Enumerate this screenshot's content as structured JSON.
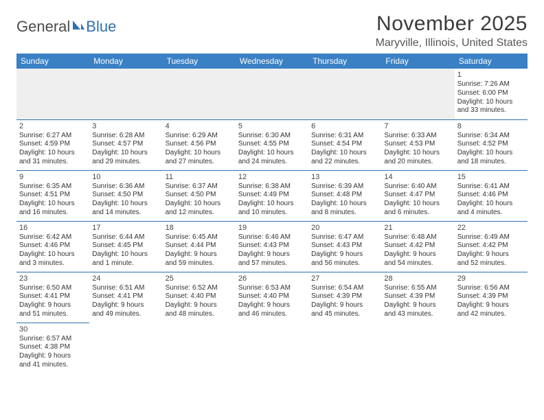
{
  "logo": {
    "text_general": "General",
    "text_blue": "Blue"
  },
  "title": "November 2025",
  "location": "Maryville, Illinois, United States",
  "colors": {
    "header_bg": "#3a80c4",
    "rule": "#2f6fb0",
    "text": "#333333",
    "muted_bg": "#efefef"
  },
  "weekdays": [
    "Sunday",
    "Monday",
    "Tuesday",
    "Wednesday",
    "Thursday",
    "Friday",
    "Saturday"
  ],
  "weeks": [
    [
      null,
      null,
      null,
      null,
      null,
      null,
      {
        "n": "1",
        "sr": "Sunrise: 7:26 AM",
        "ss": "Sunset: 6:00 PM",
        "d1": "Daylight: 10 hours",
        "d2": "and 33 minutes."
      }
    ],
    [
      {
        "n": "2",
        "sr": "Sunrise: 6:27 AM",
        "ss": "Sunset: 4:59 PM",
        "d1": "Daylight: 10 hours",
        "d2": "and 31 minutes."
      },
      {
        "n": "3",
        "sr": "Sunrise: 6:28 AM",
        "ss": "Sunset: 4:57 PM",
        "d1": "Daylight: 10 hours",
        "d2": "and 29 minutes."
      },
      {
        "n": "4",
        "sr": "Sunrise: 6:29 AM",
        "ss": "Sunset: 4:56 PM",
        "d1": "Daylight: 10 hours",
        "d2": "and 27 minutes."
      },
      {
        "n": "5",
        "sr": "Sunrise: 6:30 AM",
        "ss": "Sunset: 4:55 PM",
        "d1": "Daylight: 10 hours",
        "d2": "and 24 minutes."
      },
      {
        "n": "6",
        "sr": "Sunrise: 6:31 AM",
        "ss": "Sunset: 4:54 PM",
        "d1": "Daylight: 10 hours",
        "d2": "and 22 minutes."
      },
      {
        "n": "7",
        "sr": "Sunrise: 6:33 AM",
        "ss": "Sunset: 4:53 PM",
        "d1": "Daylight: 10 hours",
        "d2": "and 20 minutes."
      },
      {
        "n": "8",
        "sr": "Sunrise: 6:34 AM",
        "ss": "Sunset: 4:52 PM",
        "d1": "Daylight: 10 hours",
        "d2": "and 18 minutes."
      }
    ],
    [
      {
        "n": "9",
        "sr": "Sunrise: 6:35 AM",
        "ss": "Sunset: 4:51 PM",
        "d1": "Daylight: 10 hours",
        "d2": "and 16 minutes."
      },
      {
        "n": "10",
        "sr": "Sunrise: 6:36 AM",
        "ss": "Sunset: 4:50 PM",
        "d1": "Daylight: 10 hours",
        "d2": "and 14 minutes."
      },
      {
        "n": "11",
        "sr": "Sunrise: 6:37 AM",
        "ss": "Sunset: 4:50 PM",
        "d1": "Daylight: 10 hours",
        "d2": "and 12 minutes."
      },
      {
        "n": "12",
        "sr": "Sunrise: 6:38 AM",
        "ss": "Sunset: 4:49 PM",
        "d1": "Daylight: 10 hours",
        "d2": "and 10 minutes."
      },
      {
        "n": "13",
        "sr": "Sunrise: 6:39 AM",
        "ss": "Sunset: 4:48 PM",
        "d1": "Daylight: 10 hours",
        "d2": "and 8 minutes."
      },
      {
        "n": "14",
        "sr": "Sunrise: 6:40 AM",
        "ss": "Sunset: 4:47 PM",
        "d1": "Daylight: 10 hours",
        "d2": "and 6 minutes."
      },
      {
        "n": "15",
        "sr": "Sunrise: 6:41 AM",
        "ss": "Sunset: 4:46 PM",
        "d1": "Daylight: 10 hours",
        "d2": "and 4 minutes."
      }
    ],
    [
      {
        "n": "16",
        "sr": "Sunrise: 6:42 AM",
        "ss": "Sunset: 4:46 PM",
        "d1": "Daylight: 10 hours",
        "d2": "and 3 minutes."
      },
      {
        "n": "17",
        "sr": "Sunrise: 6:44 AM",
        "ss": "Sunset: 4:45 PM",
        "d1": "Daylight: 10 hours",
        "d2": "and 1 minute."
      },
      {
        "n": "18",
        "sr": "Sunrise: 6:45 AM",
        "ss": "Sunset: 4:44 PM",
        "d1": "Daylight: 9 hours",
        "d2": "and 59 minutes."
      },
      {
        "n": "19",
        "sr": "Sunrise: 6:46 AM",
        "ss": "Sunset: 4:43 PM",
        "d1": "Daylight: 9 hours",
        "d2": "and 57 minutes."
      },
      {
        "n": "20",
        "sr": "Sunrise: 6:47 AM",
        "ss": "Sunset: 4:43 PM",
        "d1": "Daylight: 9 hours",
        "d2": "and 56 minutes."
      },
      {
        "n": "21",
        "sr": "Sunrise: 6:48 AM",
        "ss": "Sunset: 4:42 PM",
        "d1": "Daylight: 9 hours",
        "d2": "and 54 minutes."
      },
      {
        "n": "22",
        "sr": "Sunrise: 6:49 AM",
        "ss": "Sunset: 4:42 PM",
        "d1": "Daylight: 9 hours",
        "d2": "and 52 minutes."
      }
    ],
    [
      {
        "n": "23",
        "sr": "Sunrise: 6:50 AM",
        "ss": "Sunset: 4:41 PM",
        "d1": "Daylight: 9 hours",
        "d2": "and 51 minutes."
      },
      {
        "n": "24",
        "sr": "Sunrise: 6:51 AM",
        "ss": "Sunset: 4:41 PM",
        "d1": "Daylight: 9 hours",
        "d2": "and 49 minutes."
      },
      {
        "n": "25",
        "sr": "Sunrise: 6:52 AM",
        "ss": "Sunset: 4:40 PM",
        "d1": "Daylight: 9 hours",
        "d2": "and 48 minutes."
      },
      {
        "n": "26",
        "sr": "Sunrise: 6:53 AM",
        "ss": "Sunset: 4:40 PM",
        "d1": "Daylight: 9 hours",
        "d2": "and 46 minutes."
      },
      {
        "n": "27",
        "sr": "Sunrise: 6:54 AM",
        "ss": "Sunset: 4:39 PM",
        "d1": "Daylight: 9 hours",
        "d2": "and 45 minutes."
      },
      {
        "n": "28",
        "sr": "Sunrise: 6:55 AM",
        "ss": "Sunset: 4:39 PM",
        "d1": "Daylight: 9 hours",
        "d2": "and 43 minutes."
      },
      {
        "n": "29",
        "sr": "Sunrise: 6:56 AM",
        "ss": "Sunset: 4:39 PM",
        "d1": "Daylight: 9 hours",
        "d2": "and 42 minutes."
      }
    ],
    [
      {
        "n": "30",
        "sr": "Sunrise: 6:57 AM",
        "ss": "Sunset: 4:38 PM",
        "d1": "Daylight: 9 hours",
        "d2": "and 41 minutes."
      },
      null,
      null,
      null,
      null,
      null,
      null
    ]
  ]
}
